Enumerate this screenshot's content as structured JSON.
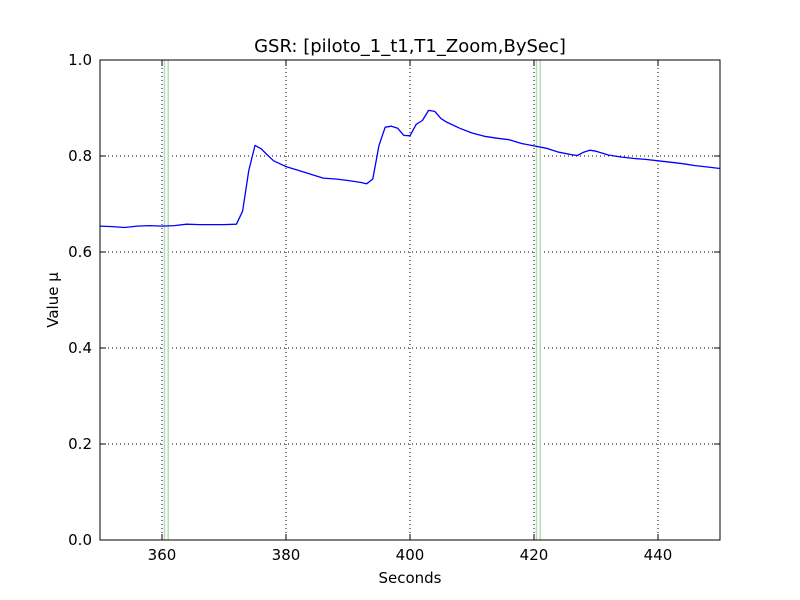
{
  "chart_data": {
    "type": "line",
    "title": "GSR: [piloto_1_t1,T1_Zoom,BySec]",
    "xlabel": "Seconds",
    "ylabel": "Value µ",
    "xlim": [
      350,
      450
    ],
    "ylim": [
      0.0,
      1.0
    ],
    "xticks": [
      360,
      380,
      400,
      420,
      440
    ],
    "xtick_labels": [
      "360",
      "380",
      "400",
      "420",
      "440"
    ],
    "yticks": [
      0.0,
      0.2,
      0.4,
      0.6,
      0.8,
      1.0
    ],
    "ytick_labels": [
      "0.0",
      "0.2",
      "0.4",
      "0.6",
      "0.8",
      "1.0"
    ],
    "grid": true,
    "line_color": "#0000ff",
    "marker_color": "#b9d9b9",
    "vertical_markers": [
      360.4,
      361.0,
      420.4,
      421.0
    ],
    "series": [
      {
        "x": [
          350,
          352,
          354,
          356,
          358,
          360,
          362,
          364,
          366,
          368,
          370,
          372,
          373,
          374,
          375,
          376,
          377,
          378,
          379,
          380,
          382,
          384,
          386,
          388,
          390,
          392,
          393,
          394,
          395,
          396,
          397,
          398,
          399,
          400,
          401,
          402,
          403,
          404,
          405,
          406,
          408,
          410,
          412,
          414,
          416,
          418,
          420,
          422,
          424,
          426,
          427,
          428,
          429,
          430,
          432,
          434,
          436,
          438,
          440,
          442,
          444,
          446,
          448,
          450
        ],
        "y": [
          0.654,
          0.653,
          0.651,
          0.654,
          0.655,
          0.654,
          0.655,
          0.658,
          0.657,
          0.657,
          0.657,
          0.658,
          0.685,
          0.77,
          0.822,
          0.815,
          0.802,
          0.79,
          0.784,
          0.778,
          0.77,
          0.762,
          0.754,
          0.752,
          0.749,
          0.745,
          0.742,
          0.752,
          0.822,
          0.86,
          0.862,
          0.858,
          0.843,
          0.842,
          0.866,
          0.874,
          0.895,
          0.893,
          0.878,
          0.87,
          0.858,
          0.848,
          0.841,
          0.837,
          0.834,
          0.826,
          0.821,
          0.816,
          0.808,
          0.803,
          0.801,
          0.808,
          0.812,
          0.81,
          0.802,
          0.798,
          0.795,
          0.793,
          0.79,
          0.787,
          0.784,
          0.78,
          0.777,
          0.774
        ]
      }
    ]
  }
}
